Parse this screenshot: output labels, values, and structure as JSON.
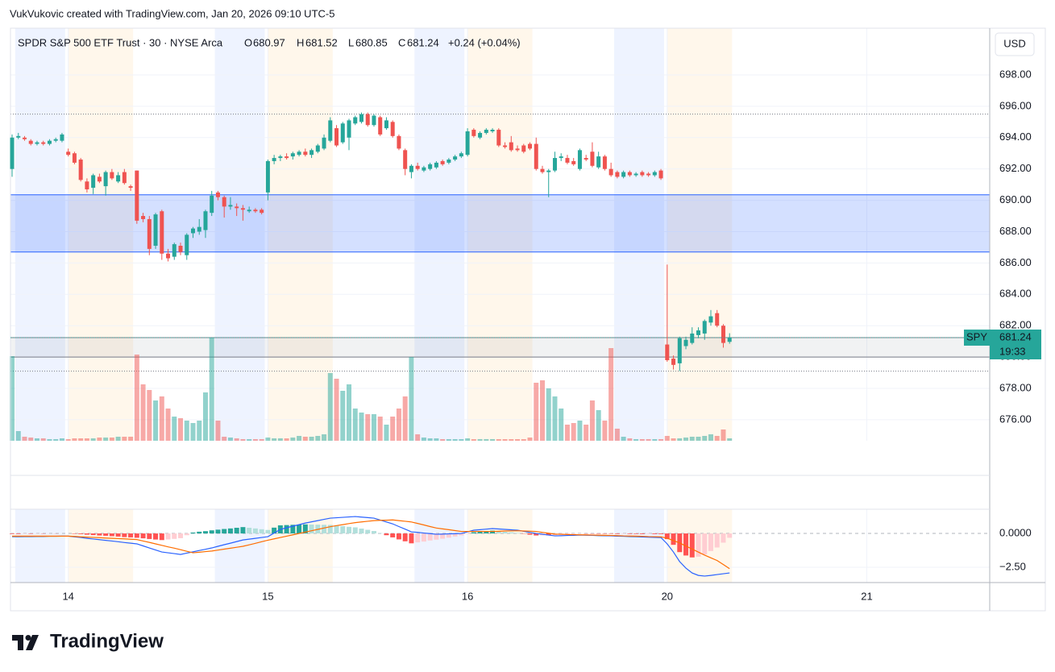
{
  "credit": "VukVukovic created with TradingView.com, Jan 20, 2026 09:10 UTC-5",
  "logo_text": "TradingView",
  "chart_data": {
    "type": "candlestick",
    "title": "SPDR S&P 500 ETF Trust · 30 · NYSE Arca",
    "ohlc_labels": [
      "O",
      "H",
      "L",
      "C"
    ],
    "change": "+0.24 (+0.04%)",
    "currency": "USD",
    "symbol": "SPY",
    "countdown": "19:33",
    "up_color": "#26a69a",
    "down_color": "#ef5350",
    "open": [
      692.0,
      694.0,
      694.0,
      693.8,
      693.6,
      693.7,
      693.6,
      693.8,
      693.8,
      693.1,
      693.0,
      692.6,
      691.2,
      690.8,
      691.5,
      690.9,
      691.8,
      691.2,
      691.8,
      690.9,
      691.9,
      689.0,
      688.8,
      687.1,
      689.3,
      686.6,
      686.4,
      687.1,
      686.5,
      687.9,
      688.0,
      688.1,
      689.2,
      690.5,
      690.2,
      689.6,
      689.6,
      689.5,
      689.3,
      689.4,
      689.4,
      690.5,
      692.5,
      692.7,
      692.8,
      692.8,
      692.9,
      693.1,
      692.9,
      693.1,
      693.3,
      693.8,
      694.6,
      693.7,
      694.0,
      694.9,
      695.0,
      695.5,
      694.8,
      695.3,
      694.6,
      695.0,
      694.1,
      693.2,
      691.8,
      692.2,
      691.9,
      692.0,
      692.1,
      692.5,
      692.4,
      692.6,
      692.8,
      692.9,
      694.5,
      694.0,
      694.3,
      694.4,
      694.5,
      693.5,
      693.7,
      693.3,
      693.5,
      693.6,
      693.6,
      692.0,
      691.8,
      691.9,
      692.7,
      692.7,
      692.5,
      692.0,
      692.7,
      693.1,
      692.1,
      692.8,
      692.0,
      691.8,
      691.5,
      691.8,
      691.6,
      691.8,
      691.7,
      691.6,
      691.9,
      680.8,
      679.9,
      679.6,
      680.7,
      680.9,
      681.4,
      681.5,
      682.2,
      682.8,
      682.0,
      680.97
    ],
    "high": [
      694.2,
      694.3,
      694.1,
      693.9,
      693.8,
      693.8,
      693.9,
      694.0,
      694.3,
      693.3,
      693.1,
      692.7,
      691.4,
      691.7,
      691.7,
      691.9,
      692.0,
      691.8,
      692.0,
      691.0,
      691.9,
      689.2,
      689.0,
      689.2,
      689.4,
      686.9,
      687.3,
      687.3,
      687.9,
      688.3,
      688.8,
      689.4,
      690.6,
      690.6,
      690.3,
      690.2,
      689.8,
      689.7,
      689.6,
      689.5,
      689.5,
      692.6,
      692.9,
      692.9,
      693.0,
      693.1,
      693.2,
      693.3,
      693.3,
      693.6,
      694.2,
      695.3,
      694.8,
      695.0,
      695.2,
      695.4,
      695.6,
      695.6,
      695.5,
      695.4,
      695.3,
      695.1,
      694.2,
      693.3,
      692.3,
      692.4,
      692.2,
      692.4,
      692.5,
      692.6,
      692.7,
      692.9,
      693.1,
      694.6,
      694.6,
      694.4,
      694.6,
      694.6,
      694.6,
      693.7,
      694.1,
      693.5,
      693.6,
      693.7,
      694.0,
      692.2,
      692.0,
      693.1,
      693.0,
      692.9,
      692.7,
      693.3,
      692.9,
      693.7,
      693.1,
      692.9,
      692.4,
      691.9,
      691.9,
      691.9,
      691.8,
      691.9,
      691.8,
      691.9,
      692.0,
      685.9,
      680.1,
      681.3,
      681.3,
      681.9,
      681.9,
      682.4,
      683.0,
      683.0,
      682.1,
      681.52
    ],
    "low": [
      691.5,
      693.9,
      693.8,
      693.5,
      693.5,
      693.5,
      693.5,
      693.7,
      693.7,
      692.8,
      692.3,
      691.2,
      690.5,
      690.4,
      691.1,
      690.3,
      691.3,
      691.1,
      691.0,
      690.6,
      688.5,
      688.6,
      686.5,
      686.9,
      686.2,
      686.1,
      686.2,
      686.5,
      686.2,
      687.6,
      687.8,
      687.6,
      689.0,
      690.0,
      688.9,
      689.4,
      689.0,
      688.7,
      689.2,
      689.2,
      689.1,
      690.0,
      692.3,
      692.5,
      692.6,
      692.6,
      692.8,
      692.8,
      692.7,
      693.0,
      693.2,
      693.7,
      693.4,
      693.6,
      693.2,
      694.8,
      694.9,
      694.7,
      694.7,
      694.1,
      694.5,
      694.0,
      693.2,
      691.6,
      691.4,
      691.9,
      691.8,
      691.9,
      692.0,
      692.2,
      692.3,
      692.5,
      692.7,
      692.8,
      694.0,
      693.9,
      694.2,
      694.3,
      693.4,
      693.3,
      693.1,
      693.1,
      693.0,
      693.2,
      691.9,
      691.7,
      690.2,
      691.8,
      692.5,
      692.3,
      692.2,
      691.9,
      692.5,
      692.1,
      692.0,
      691.9,
      691.5,
      691.4,
      691.4,
      691.5,
      691.5,
      691.5,
      691.5,
      691.5,
      691.3,
      679.7,
      679.2,
      679.1,
      680.5,
      680.8,
      681.2,
      681.1,
      682.0,
      681.9,
      680.6,
      680.85
    ],
    "close": [
      694.0,
      694.1,
      693.9,
      693.6,
      693.7,
      693.6,
      693.8,
      693.9,
      694.2,
      692.9,
      692.4,
      691.3,
      690.7,
      691.6,
      691.2,
      691.8,
      691.4,
      691.6,
      691.1,
      690.8,
      688.7,
      688.8,
      686.9,
      689.1,
      686.6,
      686.3,
      687.2,
      686.7,
      687.8,
      688.2,
      688.3,
      689.3,
      690.3,
      690.2,
      689.6,
      689.7,
      689.5,
      689.4,
      689.4,
      689.3,
      689.2,
      692.5,
      692.7,
      692.8,
      692.7,
      693.0,
      693.1,
      692.9,
      693.2,
      693.5,
      694.0,
      695.1,
      693.5,
      694.9,
      695.1,
      695.3,
      695.5,
      694.8,
      695.4,
      694.2,
      695.1,
      694.1,
      693.3,
      692.0,
      692.2,
      692.0,
      692.1,
      692.3,
      692.4,
      692.3,
      692.6,
      692.8,
      693.0,
      694.4,
      694.1,
      694.3,
      694.5,
      694.5,
      693.5,
      693.4,
      693.2,
      693.2,
      693.1,
      693.3,
      692.0,
      691.8,
      691.9,
      692.7,
      692.8,
      692.4,
      692.3,
      693.2,
      692.6,
      692.2,
      692.8,
      692.0,
      691.6,
      691.5,
      691.8,
      691.6,
      691.7,
      691.6,
      691.6,
      691.8,
      691.4,
      679.8,
      679.5,
      681.2,
      681.1,
      681.5,
      681.7,
      682.3,
      682.6,
      682.0,
      680.9,
      681.24
    ],
    "volume": [
      105,
      12,
      5,
      4,
      3,
      3,
      2,
      2,
      3,
      2,
      3,
      3,
      3,
      3,
      4,
      4,
      4,
      5,
      5,
      5,
      107,
      70,
      63,
      50,
      55,
      40,
      30,
      28,
      25,
      22,
      25,
      60,
      128,
      25,
      5,
      4,
      3,
      2,
      2,
      2,
      2,
      4,
      3,
      3,
      3,
      4,
      6,
      5,
      5,
      6,
      8,
      84,
      77,
      62,
      70,
      40,
      35,
      33,
      33,
      30,
      20,
      30,
      40,
      55,
      104,
      8,
      4,
      3,
      3,
      2,
      2,
      2,
      2,
      3,
      2,
      2,
      2,
      2,
      2,
      2,
      2,
      2,
      2,
      4,
      72,
      75,
      65,
      55,
      40,
      20,
      22,
      25,
      20,
      50,
      38,
      25,
      115,
      15,
      5,
      3,
      2,
      2,
      2,
      2,
      2,
      6,
      3,
      3,
      4,
      5,
      5,
      6,
      8,
      6,
      14,
      3
    ],
    "xlim": [
      -0.26,
      156.7
    ],
    "xticks": [
      {
        "value": 9,
        "label": "14"
      },
      {
        "value": 41,
        "label": "15"
      },
      {
        "value": 73,
        "label": "16"
      },
      {
        "value": 105,
        "label": "20"
      },
      {
        "value": 137,
        "label": "21"
      }
    ],
    "ylim": [
      674.66,
      700.98
    ],
    "yticks": [
      {
        "value": 676,
        "label": "676.00"
      },
      {
        "value": 678,
        "label": "678.00"
      },
      {
        "value": 680,
        "label": "680.00"
      },
      {
        "value": 682,
        "label": "682.00"
      },
      {
        "value": 684,
        "label": "684.00"
      },
      {
        "value": 686,
        "label": "686.00"
      },
      {
        "value": 688,
        "label": "688.00"
      },
      {
        "value": 690,
        "label": "690.00"
      },
      {
        "value": 692,
        "label": "692.00"
      },
      {
        "value": 694,
        "label": "694.00"
      },
      {
        "value": 696,
        "label": "696.00"
      },
      {
        "value": 698,
        "label": "698.00"
      }
    ],
    "grid": true,
    "zones": [
      {
        "top": 690.35,
        "bottom": 686.7,
        "color": "#2962ff"
      },
      {
        "top": 681.24,
        "bottom": 680.0,
        "color": "#787b86"
      }
    ],
    "dotted_lines": [
      695.5,
      679.1
    ],
    "macd": {
      "ylim": [
        -3.63,
        1.79
      ],
      "yticks": [
        {
          "value": 0,
          "label": "0.0000"
        },
        {
          "value": -2.5,
          "label": "−2.50"
        }
      ],
      "macd_color": "#2962ff",
      "signal_color": "#ff6d00",
      "macd": [
        -0.24,
        -0.24,
        -0.23,
        -0.23,
        -0.22,
        -0.22,
        -0.21,
        -0.21,
        -0.2,
        -0.2,
        -0.25,
        -0.3,
        -0.36,
        -0.41,
        -0.46,
        -0.51,
        -0.56,
        -0.61,
        -0.67,
        -0.72,
        -0.77,
        -0.92,
        -1.07,
        -1.22,
        -1.37,
        -1.43,
        -1.49,
        -1.55,
        -1.45,
        -1.36,
        -1.26,
        -1.17,
        -1.07,
        -0.95,
        -0.83,
        -0.72,
        -0.6,
        -0.48,
        -0.42,
        -0.36,
        -0.3,
        -0.24,
        0.03,
        0.3,
        0.42,
        0.54,
        0.65,
        0.77,
        0.86,
        0.95,
        1.04,
        1.13,
        1.16,
        1.19,
        1.22,
        1.25,
        1.21,
        1.17,
        1.13,
        0.99,
        0.85,
        0.71,
        0.51,
        0.32,
        0.12,
        0.08,
        0.03,
        -0.01,
        -0.06,
        -0.05,
        -0.03,
        -0.02,
        0,
        0.12,
        0.24,
        0.28,
        0.32,
        0.36,
        0.33,
        0.3,
        0.27,
        0.24,
        0.16,
        0.08,
        0,
        -0.06,
        -0.12,
        -0.18,
        -0.17,
        -0.15,
        -0.14,
        -0.12,
        -0.13,
        -0.14,
        -0.16,
        -0.17,
        -0.18,
        -0.2,
        -0.21,
        -0.23,
        -0.24,
        -0.26,
        -0.27,
        -0.29,
        -0.3,
        -0.77,
        -1.37,
        -2.08,
        -2.56,
        -2.92,
        -3.1,
        -3.15,
        -3.1,
        -3.04,
        -2.98,
        -2.92
      ],
      "signal": [
        -0.2,
        -0.2,
        -0.2,
        -0.2,
        -0.2,
        -0.2,
        -0.2,
        -0.2,
        -0.2,
        -0.2,
        -0.22,
        -0.25,
        -0.27,
        -0.29,
        -0.31,
        -0.34,
        -0.36,
        -0.38,
        -0.4,
        -0.43,
        -0.45,
        -0.56,
        -0.66,
        -0.77,
        -0.88,
        -0.99,
        -1.09,
        -1.2,
        -1.32,
        -1.43,
        -1.39,
        -1.34,
        -1.3,
        -1.23,
        -1.16,
        -1.09,
        -1.02,
        -0.95,
        -0.84,
        -0.73,
        -0.61,
        -0.5,
        -0.4,
        -0.3,
        -0.2,
        -0.1,
        0,
        0.1,
        0.2,
        0.3,
        0.4,
        0.5,
        0.58,
        0.65,
        0.73,
        0.8,
        0.85,
        0.9,
        0.95,
        0.97,
        0.98,
        1,
        0.95,
        0.9,
        0.85,
        0.74,
        0.63,
        0.51,
        0.4,
        0.34,
        0.28,
        0.21,
        0.15,
        0.15,
        0.15,
        0.15,
        0.15,
        0.15,
        0.16,
        0.18,
        0.19,
        0.2,
        0.18,
        0.17,
        0.15,
        0.08,
        0.02,
        -0.05,
        -0.06,
        -0.08,
        -0.09,
        -0.1,
        -0.11,
        -0.12,
        -0.13,
        -0.14,
        -0.15,
        -0.16,
        -0.18,
        -0.19,
        -0.2,
        -0.21,
        -0.23,
        -0.24,
        -0.25,
        -0.35,
        -0.53,
        -0.7,
        -0.93,
        -1.15,
        -1.38,
        -1.6,
        -1.8,
        -2,
        -2.3,
        -2.6
      ],
      "histogram": [
        -0.04,
        -0.04,
        -0.03,
        -0.03,
        -0.02,
        -0.02,
        -0.01,
        -0.01,
        0,
        0,
        -0.03,
        -0.05,
        -0.09,
        -0.12,
        -0.15,
        -0.17,
        -0.2,
        -0.23,
        -0.27,
        -0.29,
        -0.32,
        -0.36,
        -0.41,
        -0.45,
        -0.49,
        -0.44,
        -0.4,
        -0.35,
        -0.13,
        0.07,
        0.13,
        0.17,
        0.23,
        0.28,
        0.33,
        0.37,
        0.42,
        0.47,
        0.42,
        0.37,
        0.31,
        0.26,
        0.43,
        0.6,
        0.62,
        0.64,
        0.65,
        0.67,
        0.66,
        0.65,
        0.64,
        0.63,
        0.58,
        0.54,
        0.49,
        0.45,
        0.36,
        0.27,
        0.18,
        0.02,
        -0.13,
        -0.29,
        -0.44,
        -0.58,
        -0.73,
        -0.66,
        -0.6,
        -0.52,
        -0.46,
        -0.39,
        -0.31,
        -0.23,
        -0.15,
        -0.03,
        0.09,
        0.13,
        0.17,
        0.21,
        0.17,
        0.12,
        0.08,
        0.04,
        -0.02,
        -0.09,
        -0.15,
        -0.14,
        -0.14,
        -0.13,
        -0.11,
        -0.07,
        -0.05,
        -0.02,
        -0.02,
        -0.02,
        -0.03,
        -0.03,
        -0.03,
        -0.04,
        -0.03,
        -0.04,
        -0.04,
        -0.05,
        -0.04,
        -0.05,
        -0.05,
        -0.42,
        -0.84,
        -1.38,
        -1.63,
        -1.77,
        -1.72,
        -1.55,
        -1.3,
        -1.04,
        -0.68,
        -0.32
      ]
    }
  }
}
